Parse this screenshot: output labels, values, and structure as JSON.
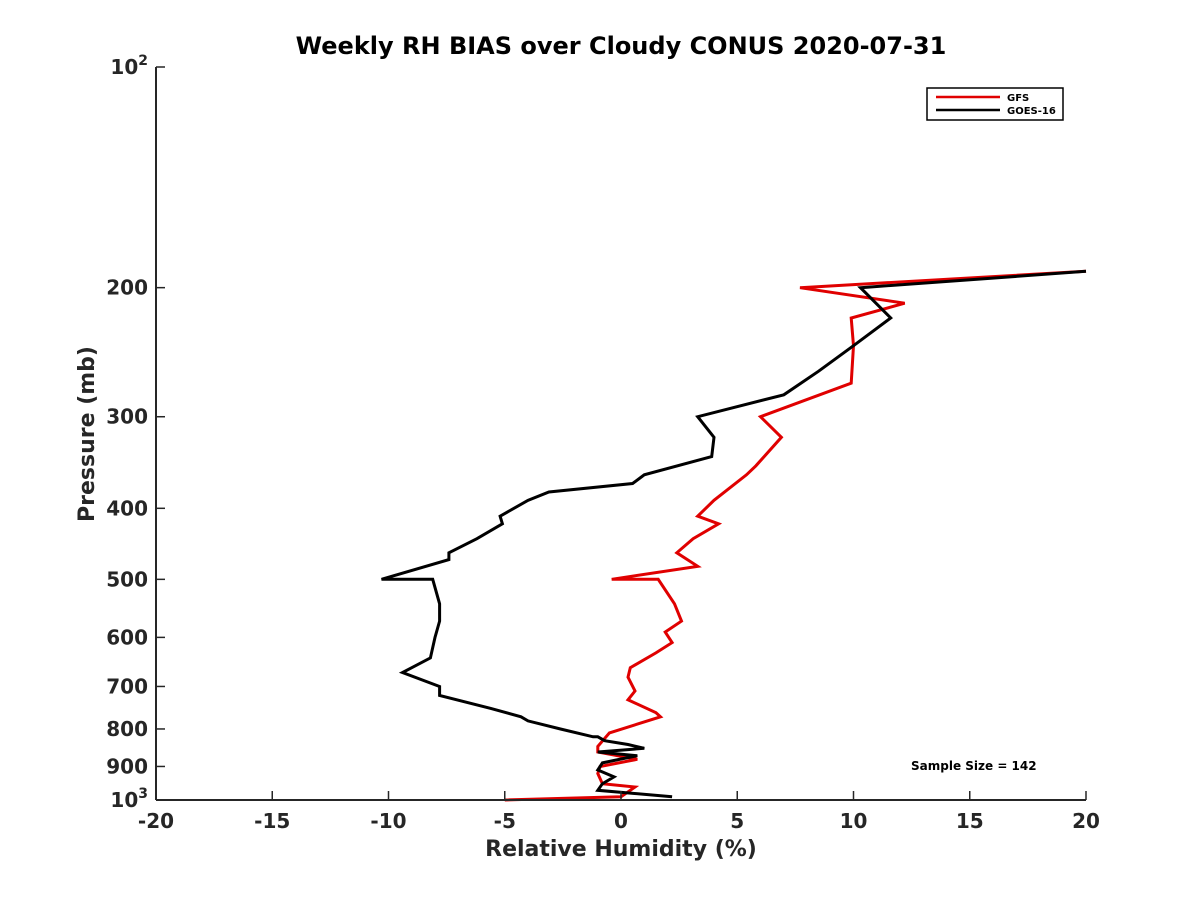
{
  "chart_data": {
    "type": "line",
    "title": "Weekly RH BIAS over Cloudy CONUS 2020-07-31",
    "xlabel": "Relative Humidity (%)",
    "ylabel": "Pressure (mb)",
    "xlim": [
      -20,
      20
    ],
    "ylim": [
      100,
      1000
    ],
    "y_scale": "log",
    "y_reversed": true,
    "grid": false,
    "legend_position": "top-right",
    "x_ticks": [
      -20,
      -15,
      -10,
      -5,
      0,
      5,
      10,
      15,
      20
    ],
    "x_tick_labels": [
      "-20",
      "-15",
      "-10",
      "-5",
      "0",
      "5",
      "10",
      "15",
      "20"
    ],
    "y_ticks": [
      100,
      200,
      300,
      400,
      500,
      600,
      700,
      800,
      900,
      1000
    ],
    "y_tick_labels": [
      "10^2",
      "200",
      "300",
      "400",
      "500",
      "600",
      "700",
      "800",
      "900",
      "10^3"
    ],
    "annotation": "Sample Size = 142",
    "series": [
      {
        "name": "GFS",
        "color": "#e00000",
        "x": [
          -5.0,
          0.0,
          0.6,
          -0.8,
          -1.0,
          -0.9,
          0.7,
          -1.0,
          -1.0,
          -0.5,
          1.7,
          1.5,
          0.3,
          0.6,
          0.3,
          0.4,
          1.5,
          2.2,
          1.9,
          2.6,
          2.3,
          1.6,
          -0.4,
          3.3,
          2.4,
          3.1,
          4.2,
          3.3,
          4.0,
          5.4,
          5.8,
          6.9,
          6.0,
          9.9,
          10.0,
          9.9,
          12.2,
          7.7,
          20.0
        ],
        "y": [
          1000,
          990,
          960,
          950,
          920,
          900,
          880,
          860,
          845,
          810,
          770,
          760,
          730,
          710,
          680,
          660,
          630,
          610,
          590,
          570,
          540,
          500,
          500,
          480,
          460,
          440,
          420,
          410,
          390,
          360,
          350,
          320,
          300,
          270,
          240,
          220,
          210,
          200,
          190
        ]
      },
      {
        "name": "GOES-16",
        "color": "#000000",
        "x": [
          2.2,
          -1.0,
          -0.8,
          -0.3,
          -1.0,
          -0.8,
          0.7,
          -1.0,
          1.0,
          0.3,
          -0.7,
          -1.0,
          -1.2,
          -2.6,
          -4.0,
          -4.3,
          -5.6,
          -7.8,
          -7.8,
          -9.4,
          -8.2,
          -8.0,
          -7.8,
          -7.8,
          -8.1,
          -10.3,
          -7.4,
          -7.4,
          -6.2,
          -5.1,
          -5.2,
          -4.0,
          -3.1,
          0.5,
          1.0,
          3.9,
          4.0,
          3.3,
          7.0,
          8.5,
          10.0,
          11.6,
          10.3,
          20.0
        ],
        "y": [
          990,
          970,
          950,
          930,
          910,
          890,
          870,
          860,
          850,
          840,
          830,
          820,
          820,
          800,
          780,
          770,
          750,
          720,
          700,
          670,
          640,
          600,
          570,
          540,
          500,
          500,
          470,
          460,
          440,
          420,
          410,
          390,
          380,
          370,
          360,
          340,
          320,
          300,
          280,
          260,
          240,
          220,
          200,
          190
        ]
      }
    ]
  }
}
